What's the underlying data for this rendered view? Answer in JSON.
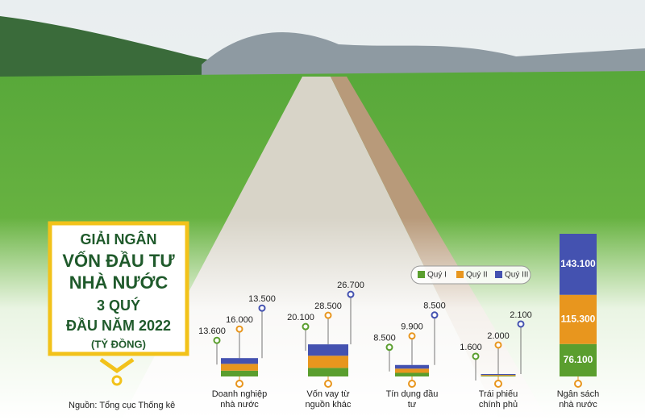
{
  "chart_data": {
    "type": "stacked-bar",
    "title": [
      "GIẢI NGÂN",
      "VỐN ĐẦU TƯ",
      "NHÀ NƯỚC",
      "3 QUÝ",
      "ĐẦU NĂM 2022",
      "(TỶ ĐỒNG)"
    ],
    "source": "Nguồn: Tổng cục Thống kê",
    "categories": [
      "Doanh nghiệp nhà nước",
      "Vốn vay từ nguồn khác",
      "Tín dụng đầu tư",
      "Trái phiếu chính phủ",
      "Ngân sách nhà nước"
    ],
    "series": [
      {
        "name": "Quý I",
        "color": "#5a9e2e",
        "values": [
          13600,
          20100,
          8500,
          1600,
          76100
        ],
        "value_labels": [
          "13.600",
          "20.100",
          "8.500",
          "1.600",
          "76.100"
        ]
      },
      {
        "name": "Quý II",
        "color": "#e8961e",
        "values": [
          16000,
          28500,
          9900,
          2000,
          115300
        ],
        "value_labels": [
          "16.000",
          "28.500",
          "9.900",
          "2.000",
          "115.300"
        ]
      },
      {
        "name": "Quý III",
        "color": "#4452b0",
        "values": [
          13500,
          26700,
          8500,
          2100,
          143100
        ],
        "value_labels": [
          "13.500",
          "26.700",
          "8.500",
          "2.100",
          "143.100"
        ]
      }
    ]
  }
}
